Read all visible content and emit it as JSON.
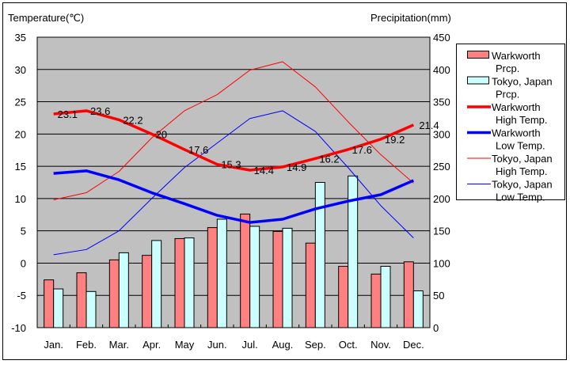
{
  "chart_data": {
    "type": "bar+line",
    "left_axis_title": "Temperature(℃)",
    "right_axis_title": "Precipitation(mm)",
    "categories": [
      "Jan.",
      "Feb.",
      "Mar.",
      "Apr.",
      "May",
      "Jun.",
      "Jul.",
      "Aug.",
      "Sep.",
      "Oct.",
      "Nov.",
      "Dec."
    ],
    "left_ylim": [
      -10,
      35
    ],
    "left_ticks": [
      -10,
      -5,
      0,
      5,
      10,
      15,
      20,
      25,
      30,
      35
    ],
    "right_ylim": [
      0,
      450
    ],
    "right_ticks": [
      0,
      50,
      100,
      150,
      200,
      250,
      300,
      350,
      400,
      450
    ],
    "grid": true,
    "legend_position": "right",
    "bar_series": [
      {
        "name": "Warkworth Prcp.",
        "legend_lines": [
          "Warkworth",
          "Prcp."
        ],
        "color": "#ff8080",
        "values": [
          74,
          85,
          105,
          112,
          138,
          155,
          176,
          149,
          131,
          95,
          83,
          102
        ]
      },
      {
        "name": "Tokyo, Japan Prcp.",
        "legend_lines": [
          "Tokyo, Japan",
          "Prcp."
        ],
        "color": "#ccffff",
        "values": [
          60,
          56,
          116,
          135,
          139,
          168,
          157,
          154,
          225,
          235,
          95,
          57
        ]
      }
    ],
    "line_series": [
      {
        "name": "Warkworth High Temp.",
        "legend_lines": [
          "Warkworth",
          "High Temp."
        ],
        "color": "#ff0000",
        "thick": true,
        "values": [
          23.1,
          23.6,
          22.2,
          20,
          17.6,
          15.3,
          14.4,
          14.9,
          16.2,
          17.6,
          19.2,
          21.4
        ],
        "labels": [
          "23.1",
          "23.6",
          "22.2",
          "20",
          "17.6",
          "15.3",
          "14.4",
          "14.9",
          "16.2",
          "17.6",
          "19.2",
          "21.4"
        ]
      },
      {
        "name": "Warkworth Low Temp.",
        "legend_lines": [
          "Warkworth",
          "Low Temp."
        ],
        "color": "#0000ff",
        "thick": true,
        "values": [
          13.9,
          14.3,
          12.9,
          10.9,
          9.2,
          7.4,
          6.3,
          6.8,
          8.4,
          9.6,
          10.6,
          12.8
        ]
      },
      {
        "name": "Tokyo, Japan High Temp.",
        "legend_lines": [
          "Tokyo, Japan",
          "High Temp."
        ],
        "color": "#ff0000",
        "thick": false,
        "values": [
          9.8,
          10.9,
          14.2,
          19.4,
          23.6,
          26.1,
          29.9,
          31.2,
          27.3,
          21.9,
          16.8,
          12.4
        ]
      },
      {
        "name": "Tokyo, Japan Low Temp.",
        "legend_lines": [
          "Tokyo, Japan",
          "Low Temp."
        ],
        "color": "#0000ff",
        "thick": false,
        "values": [
          1.3,
          2.1,
          5.0,
          10.0,
          14.8,
          18.6,
          22.4,
          23.6,
          20.4,
          14.8,
          8.9,
          3.9
        ]
      }
    ]
  }
}
